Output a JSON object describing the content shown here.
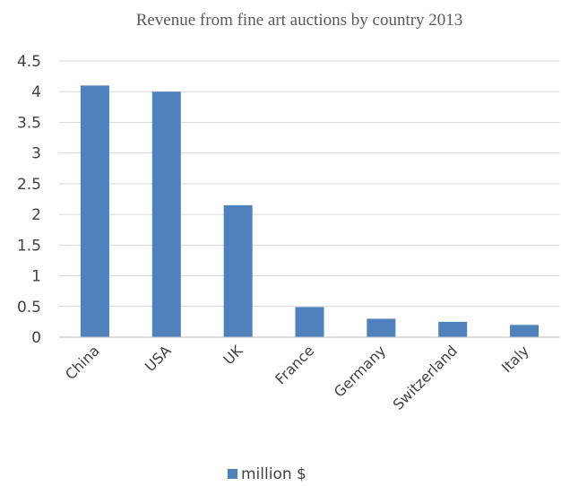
{
  "chart_data": {
    "type": "bar",
    "title": "Revenue from fine art auctions by country 2013",
    "categories": [
      "China",
      "USA",
      "UK",
      "France",
      "Germany",
      "Switzerland",
      "Italy"
    ],
    "series": [
      {
        "name": "million $",
        "values": [
          4.1,
          4.0,
          2.15,
          0.49,
          0.3,
          0.25,
          0.2
        ],
        "color": "#4f81bd"
      }
    ],
    "xlabel": "",
    "ylabel": "",
    "ylim": [
      0,
      4.5
    ],
    "yticks": [
      "0",
      "0.5",
      "1",
      "1.5",
      "2",
      "2.5",
      "3",
      "3.5",
      "4",
      "4.5"
    ],
    "grid": true,
    "legend_position": "bottom"
  }
}
